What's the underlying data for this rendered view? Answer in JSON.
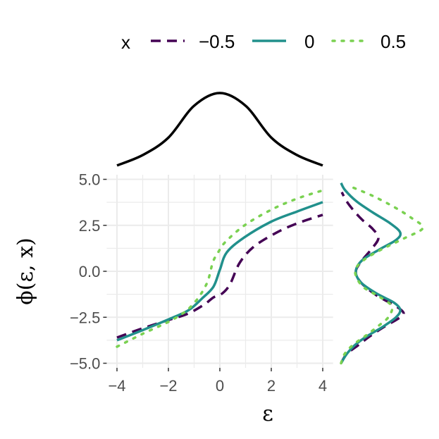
{
  "chart_data": {
    "type": "line",
    "xlabel": "ε",
    "ylabel": "ϕ(ε, x)",
    "xlim": [
      -4.4,
      4.4
    ],
    "ylim": [
      -5.25,
      5.25
    ],
    "x_ticks": [
      "−4",
      "−2",
      "0",
      "2",
      "4"
    ],
    "x_tick_values": [
      -4,
      -2,
      0,
      2,
      4
    ],
    "y_ticks": [
      "5.0",
      "2.5",
      "0.0",
      "−2.5",
      "−5.0"
    ],
    "y_tick_values": [
      5,
      2.5,
      0,
      -2.5,
      -5
    ],
    "grid": true,
    "legend": {
      "title": "x",
      "placement": "top"
    },
    "series": [
      {
        "name": "−0.5",
        "color": "#440154",
        "dash": "dashed",
        "points": [
          [
            -4,
            -3.6
          ],
          [
            -3,
            -3.1
          ],
          [
            -2,
            -2.65
          ],
          [
            -1.23,
            -2.3
          ],
          [
            -0.6,
            -1.8
          ],
          [
            -0.25,
            -1.42
          ],
          [
            0.1,
            -1.2
          ],
          [
            0.4,
            -0.69
          ],
          [
            0.77,
            0.46
          ],
          [
            1.32,
            1.34
          ],
          [
            2.2,
            2.1
          ],
          [
            3,
            2.6
          ],
          [
            4,
            3.07
          ]
        ],
        "phi_density": [
          [
            -5,
            0
          ],
          [
            -4.5,
            0.08
          ],
          [
            -4,
            0.25
          ],
          [
            -3.5,
            0.42
          ],
          [
            -3,
            0.62
          ],
          [
            -2.6,
            0.8
          ],
          [
            -2.3,
            0.89
          ],
          [
            -1.9,
            0.78
          ],
          [
            -1.3,
            0.5
          ],
          [
            -0.6,
            0.28
          ],
          [
            0,
            0.21
          ],
          [
            0.6,
            0.3
          ],
          [
            1.2,
            0.43
          ],
          [
            1.8,
            0.53
          ],
          [
            2.3,
            0.45
          ],
          [
            2.8,
            0.3
          ],
          [
            3.3,
            0.18
          ],
          [
            3.8,
            0.08
          ],
          [
            4.3,
            0.01
          ]
        ]
      },
      {
        "name": "0",
        "color": "#21908C",
        "dash": "solid",
        "points": [
          [
            -4,
            -3.75
          ],
          [
            -3,
            -3.2
          ],
          [
            -1.97,
            -2.6
          ],
          [
            -1.2,
            -2.1
          ],
          [
            -0.68,
            -1.46
          ],
          [
            -0.25,
            -0.84
          ],
          [
            0,
            0.08
          ],
          [
            0.27,
            1.03
          ],
          [
            0.96,
            1.85
          ],
          [
            2,
            2.7
          ],
          [
            3,
            3.25
          ],
          [
            4,
            3.76
          ]
        ],
        "phi_density": [
          [
            -5,
            0
          ],
          [
            -4.5,
            0.08
          ],
          [
            -4,
            0.2
          ],
          [
            -3.5,
            0.38
          ],
          [
            -3,
            0.6
          ],
          [
            -2.5,
            0.78
          ],
          [
            -2.1,
            0.84
          ],
          [
            -1.7,
            0.75
          ],
          [
            -1.2,
            0.5
          ],
          [
            -0.6,
            0.28
          ],
          [
            0,
            0.21
          ],
          [
            0.6,
            0.3
          ],
          [
            1.2,
            0.55
          ],
          [
            1.7,
            0.78
          ],
          [
            2.1,
            0.84
          ],
          [
            2.6,
            0.7
          ],
          [
            3.2,
            0.45
          ],
          [
            3.8,
            0.22
          ],
          [
            4.4,
            0.06
          ],
          [
            4.8,
            0
          ]
        ]
      },
      {
        "name": "0.5",
        "color": "#7AD151",
        "dash": "dotted",
        "points": [
          [
            -4,
            -4.1
          ],
          [
            -3,
            -3.4
          ],
          [
            -1.8,
            -2.6
          ],
          [
            -1.07,
            -1.84
          ],
          [
            -0.52,
            -0.7
          ],
          [
            -0.27,
            0.5
          ],
          [
            -0.05,
            1.07
          ],
          [
            0.22,
            1.6
          ],
          [
            0.96,
            2.5
          ],
          [
            2,
            3.35
          ],
          [
            3,
            3.95
          ],
          [
            4,
            4.4
          ]
        ],
        "phi_density": [
          [
            -5,
            0
          ],
          [
            -4.5,
            0.05
          ],
          [
            -4,
            0.17
          ],
          [
            -3.5,
            0.35
          ],
          [
            -3,
            0.52
          ],
          [
            -2.5,
            0.67
          ],
          [
            -1.9,
            0.72
          ],
          [
            -1.4,
            0.55
          ],
          [
            -0.8,
            0.3
          ],
          [
            0,
            0.2
          ],
          [
            0.6,
            0.32
          ],
          [
            1.2,
            0.58
          ],
          [
            1.8,
            0.9
          ],
          [
            2.35,
            1.16
          ],
          [
            2.9,
            1.0
          ],
          [
            3.5,
            0.75
          ],
          [
            4.1,
            0.45
          ],
          [
            4.55,
            0.17
          ]
        ]
      }
    ],
    "eps_density": {
      "color": "#000000",
      "points": [
        [
          -4,
          0.09
        ],
        [
          -3,
          0.22
        ],
        [
          -2,
          0.44
        ],
        [
          -1,
          0.84
        ],
        [
          0,
          1.0
        ],
        [
          1,
          0.84
        ],
        [
          2,
          0.44
        ],
        [
          3,
          0.22
        ],
        [
          4,
          0.09
        ]
      ]
    }
  }
}
